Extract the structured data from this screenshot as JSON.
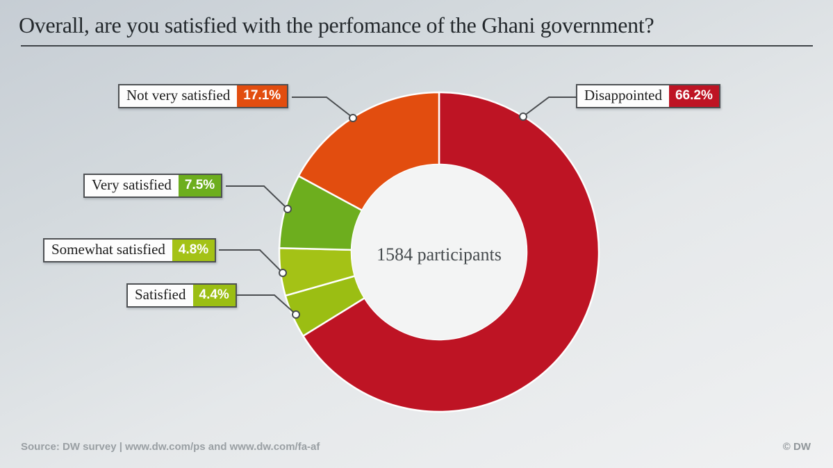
{
  "header": {
    "title": "Overall, are you satisfied with the perfomance of the Ghani government?"
  },
  "footer": {
    "source": "Source: DW survey | www.dw.com/ps and www.dw.com/fa-af",
    "copyright": "© DW"
  },
  "chart_data": {
    "type": "pie",
    "donut": true,
    "title": "Overall, are you satisfied with the perfomance of the Ghani government?",
    "center_label": "1584 participants",
    "participants": 1584,
    "start_angle_deg": 0,
    "direction": "clockwise",
    "legend_position": "callouts",
    "slices": [
      {
        "label": "Disappointed",
        "value": 66.2,
        "display": "66.2%",
        "color": "#be1424"
      },
      {
        "label": "Satisfied",
        "value": 4.4,
        "display": "4.4%",
        "color": "#9bbe13"
      },
      {
        "label": "Somewhat satisfied",
        "value": 4.8,
        "display": "4.8%",
        "color": "#a4c216"
      },
      {
        "label": "Very satisfied",
        "value": 7.5,
        "display": "7.5%",
        "color": "#6dae1e"
      },
      {
        "label": "Not very satisfied",
        "value": 17.1,
        "display": "17.1%",
        "color": "#e24d0f"
      }
    ],
    "colors": {
      "hole_fill": "#f3f4f4",
      "divider": "#ffffff",
      "leader_line": "#4a4d50"
    }
  }
}
